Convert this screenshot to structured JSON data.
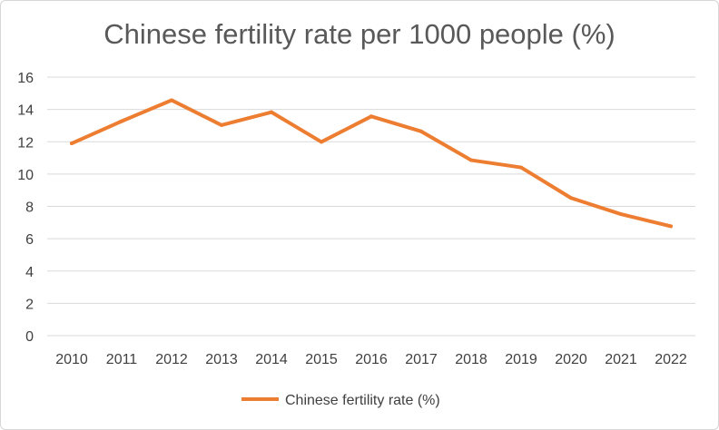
{
  "chart_data": {
    "type": "line",
    "title": "Chinese fertility rate per 1000 people (%)",
    "xlabel": "",
    "ylabel": "",
    "ylim": [
      0,
      16
    ],
    "yticks": [
      0,
      2,
      4,
      6,
      8,
      10,
      12,
      14,
      16
    ],
    "grid": true,
    "legend_position": "bottom",
    "categories": [
      "2010",
      "2011",
      "2012",
      "2013",
      "2014",
      "2015",
      "2016",
      "2017",
      "2018",
      "2019",
      "2020",
      "2021",
      "2022"
    ],
    "series": [
      {
        "name": "Chinese fertility rate (%)",
        "color": "#ED7D31",
        "values": [
          11.9,
          13.27,
          14.57,
          13.03,
          13.83,
          11.99,
          13.57,
          12.64,
          10.86,
          10.41,
          8.52,
          7.52,
          6.77
        ]
      }
    ]
  }
}
